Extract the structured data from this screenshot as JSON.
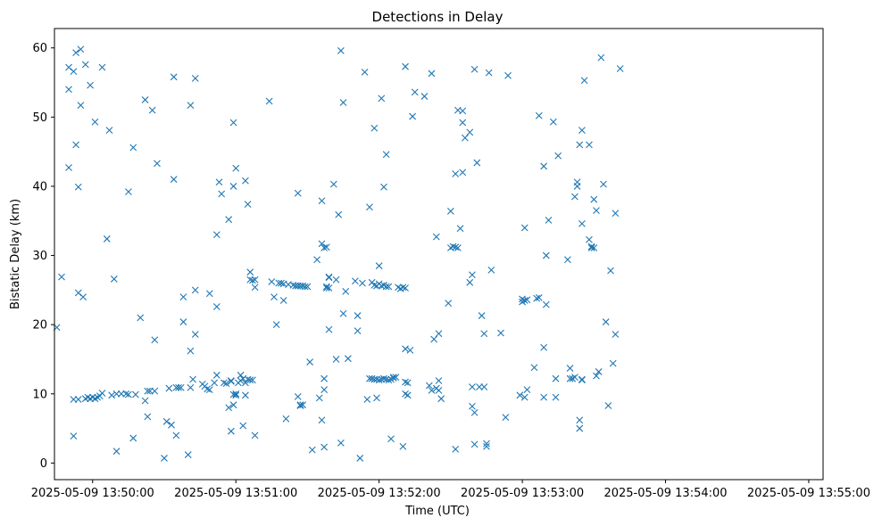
{
  "chart_data": {
    "type": "scatter",
    "title": "Detections in Delay",
    "xlabel": "Time (UTC)",
    "ylabel": "Bistatic Delay (km)",
    "marker": "x",
    "color": "#1f77b4",
    "grid": false,
    "legend": "none",
    "x_unit": "HH:MM:SS (UTC, 2025-05-09)",
    "xlim": [
      "13:49:44",
      "13:55:06"
    ],
    "ylim": [
      -2.4,
      62.8
    ],
    "x_ticks": [
      "2025-05-09 13:50:00",
      "2025-05-09 13:51:00",
      "2025-05-09 13:52:00",
      "2025-05-09 13:53:00",
      "2025-05-09 13:54:00",
      "2025-05-09 13:55:00"
    ],
    "y_ticks": [
      "0",
      "10",
      "20",
      "30",
      "40",
      "50",
      "60"
    ],
    "points": [
      [
        "13:49:45",
        19.6
      ],
      [
        "13:49:47",
        26.9
      ],
      [
        "13:49:50",
        57.2
      ],
      [
        "13:49:50",
        54.0
      ],
      [
        "13:49:50",
        42.7
      ],
      [
        "13:49:52",
        56.6
      ],
      [
        "13:49:52",
        9.2
      ],
      [
        "13:49:52",
        3.9
      ],
      [
        "13:49:53",
        46.0
      ],
      [
        "13:49:53",
        59.3
      ],
      [
        "13:49:54",
        24.6
      ],
      [
        "13:49:54",
        39.9
      ],
      [
        "13:49:54",
        9.2
      ],
      [
        "13:49:55",
        51.7
      ],
      [
        "13:49:55",
        59.8
      ],
      [
        "13:49:56",
        24.0
      ],
      [
        "13:49:57",
        9.3
      ],
      [
        "13:49:57",
        57.6
      ],
      [
        "13:49:58",
        9.5
      ],
      [
        "13:49:59",
        54.6
      ],
      [
        "13:49:59",
        9.3
      ],
      [
        "13:50:00",
        9.5
      ],
      [
        "13:50:01",
        9.3
      ],
      [
        "13:50:01",
        49.3
      ],
      [
        "13:50:02",
        9.5
      ],
      [
        "13:50:03",
        9.7
      ],
      [
        "13:50:04",
        10.1
      ],
      [
        "13:50:04",
        57.2
      ],
      [
        "13:50:06",
        32.4
      ],
      [
        "13:50:07",
        48.1
      ],
      [
        "13:50:08",
        9.8
      ],
      [
        "13:50:09",
        26.6
      ],
      [
        "13:50:10",
        10.0
      ],
      [
        "13:50:10",
        1.7
      ],
      [
        "13:50:12",
        10.0
      ],
      [
        "13:50:14",
        10.0
      ],
      [
        "13:50:15",
        9.9
      ],
      [
        "13:50:15",
        39.2
      ],
      [
        "13:50:17",
        3.6
      ],
      [
        "13:50:17",
        45.6
      ],
      [
        "13:50:18",
        9.9
      ],
      [
        "13:50:20",
        21.0
      ],
      [
        "13:50:22",
        52.5
      ],
      [
        "13:50:22",
        9.0
      ],
      [
        "13:50:23",
        10.4
      ],
      [
        "13:50:23",
        6.7
      ],
      [
        "13:50:24",
        10.4
      ],
      [
        "13:50:25",
        51.0
      ],
      [
        "13:50:26",
        17.8
      ],
      [
        "13:50:26",
        10.4
      ],
      [
        "13:50:27",
        43.3
      ],
      [
        "13:50:30",
        0.7
      ],
      [
        "13:50:31",
        6.0
      ],
      [
        "13:50:32",
        10.8
      ],
      [
        "13:50:33",
        5.5
      ],
      [
        "13:50:34",
        41.0
      ],
      [
        "13:50:34",
        55.8
      ],
      [
        "13:50:35",
        4.0
      ],
      [
        "13:50:35",
        10.9
      ],
      [
        "13:50:36",
        10.9
      ],
      [
        "13:50:37",
        10.9
      ],
      [
        "13:50:38",
        20.4
      ],
      [
        "13:50:38",
        24.0
      ],
      [
        "13:50:40",
        1.2
      ],
      [
        "13:50:41",
        10.9
      ],
      [
        "13:50:41",
        16.2
      ],
      [
        "13:50:41",
        51.7
      ],
      [
        "13:50:42",
        12.1
      ],
      [
        "13:50:43",
        18.6
      ],
      [
        "13:50:43",
        25.0
      ],
      [
        "13:50:43",
        55.6
      ],
      [
        "13:50:46",
        11.4
      ],
      [
        "13:50:47",
        11.1
      ],
      [
        "13:50:48",
        10.7
      ],
      [
        "13:50:49",
        10.6
      ],
      [
        "13:50:49",
        24.5
      ],
      [
        "13:50:51",
        11.6
      ],
      [
        "13:50:52",
        33.0
      ],
      [
        "13:50:52",
        12.7
      ],
      [
        "13:50:52",
        22.6
      ],
      [
        "13:50:53",
        40.6
      ],
      [
        "13:50:54",
        38.9
      ],
      [
        "13:50:55",
        11.6
      ],
      [
        "13:50:56",
        11.5
      ],
      [
        "13:50:57",
        8.0
      ],
      [
        "13:50:57",
        35.2
      ],
      [
        "13:50:58",
        4.6
      ],
      [
        "13:50:58",
        11.8
      ],
      [
        "13:50:58",
        11.9
      ],
      [
        "13:50:59",
        40.0
      ],
      [
        "13:50:59",
        49.2
      ],
      [
        "13:50:59",
        8.4
      ],
      [
        "13:50:59",
        9.9
      ],
      [
        "13:51:00",
        10.0
      ],
      [
        "13:51:00",
        9.8
      ],
      [
        "13:51:00",
        42.6
      ],
      [
        "13:51:01",
        11.6
      ],
      [
        "13:51:02",
        11.9
      ],
      [
        "13:51:02",
        12.7
      ],
      [
        "13:51:03",
        5.4
      ],
      [
        "13:51:03",
        12.2
      ],
      [
        "13:51:04",
        11.6
      ],
      [
        "13:51:04",
        9.8
      ],
      [
        "13:51:04",
        40.8
      ],
      [
        "13:51:05",
        12.1
      ],
      [
        "13:51:05",
        37.4
      ],
      [
        "13:51:06",
        12.0
      ],
      [
        "13:51:06",
        27.6
      ],
      [
        "13:51:06",
        26.5
      ],
      [
        "13:51:07",
        12.0
      ],
      [
        "13:51:07",
        26.4
      ],
      [
        "13:51:08",
        26.5
      ],
      [
        "13:51:08",
        25.4
      ],
      [
        "13:51:08",
        4.0
      ],
      [
        "13:51:14",
        52.3
      ],
      [
        "13:51:15",
        26.2
      ],
      [
        "13:51:16",
        24.0
      ],
      [
        "13:51:17",
        20.0
      ],
      [
        "13:51:18",
        26.0
      ],
      [
        "13:51:19",
        26.0
      ],
      [
        "13:51:20",
        23.5
      ],
      [
        "13:51:20",
        25.9
      ],
      [
        "13:51:21",
        6.4
      ],
      [
        "13:51:22",
        25.8
      ],
      [
        "13:51:24",
        25.7
      ],
      [
        "13:51:25",
        25.6
      ],
      [
        "13:51:26",
        25.6
      ],
      [
        "13:51:26",
        39.0
      ],
      [
        "13:51:26",
        9.6
      ],
      [
        "13:51:27",
        8.3
      ],
      [
        "13:51:27",
        8.4
      ],
      [
        "13:51:27",
        25.6
      ],
      [
        "13:51:28",
        25.6
      ],
      [
        "13:51:28",
        8.4
      ],
      [
        "13:51:29",
        25.5
      ],
      [
        "13:51:30",
        25.5
      ],
      [
        "13:51:31",
        14.6
      ],
      [
        "13:51:32",
        1.9
      ],
      [
        "13:51:34",
        29.4
      ],
      [
        "13:51:35",
        9.4
      ],
      [
        "13:51:36",
        31.7
      ],
      [
        "13:51:36",
        37.9
      ],
      [
        "13:51:36",
        6.2
      ],
      [
        "13:51:37",
        31.1
      ],
      [
        "13:51:37",
        2.3
      ],
      [
        "13:51:37",
        10.6
      ],
      [
        "13:51:37",
        12.2
      ],
      [
        "13:51:38",
        31.2
      ],
      [
        "13:51:38",
        25.3
      ],
      [
        "13:51:38",
        25.5
      ],
      [
        "13:51:39",
        26.9
      ],
      [
        "13:51:39",
        26.8
      ],
      [
        "13:51:39",
        19.3
      ],
      [
        "13:51:39",
        25.3
      ],
      [
        "13:51:41",
        40.3
      ],
      [
        "13:51:42",
        26.5
      ],
      [
        "13:51:42",
        15.0
      ],
      [
        "13:51:43",
        35.9
      ],
      [
        "13:51:44",
        2.9
      ],
      [
        "13:51:44",
        59.6
      ],
      [
        "13:51:45",
        52.1
      ],
      [
        "13:51:45",
        21.6
      ],
      [
        "13:51:46",
        24.8
      ],
      [
        "13:51:47",
        15.1
      ],
      [
        "13:51:50",
        26.3
      ],
      [
        "13:51:51",
        19.1
      ],
      [
        "13:51:51",
        21.3
      ],
      [
        "13:51:52",
        0.7
      ],
      [
        "13:51:53",
        26.0
      ],
      [
        "13:51:54",
        56.5
      ],
      [
        "13:51:55",
        9.2
      ],
      [
        "13:51:56",
        12.2
      ],
      [
        "13:51:56",
        37.0
      ],
      [
        "13:51:57",
        12.2
      ],
      [
        "13:51:57",
        26.1
      ],
      [
        "13:51:58",
        12.1
      ],
      [
        "13:51:58",
        25.7
      ],
      [
        "13:51:58",
        48.4
      ],
      [
        "13:51:59",
        9.4
      ],
      [
        "13:51:59",
        12.1
      ],
      [
        "13:51:59",
        25.6
      ],
      [
        "13:52:00",
        12.0
      ],
      [
        "13:52:00",
        28.5
      ],
      [
        "13:52:00",
        25.9
      ],
      [
        "13:52:01",
        12.1
      ],
      [
        "13:52:01",
        25.6
      ],
      [
        "13:52:01",
        52.7
      ],
      [
        "13:52:02",
        39.9
      ],
      [
        "13:52:02",
        12.2
      ],
      [
        "13:52:02",
        25.7
      ],
      [
        "13:52:03",
        12.1
      ],
      [
        "13:52:03",
        44.6
      ],
      [
        "13:52:03",
        25.5
      ],
      [
        "13:52:04",
        12.0
      ],
      [
        "13:52:04",
        25.5
      ],
      [
        "13:52:05",
        12.1
      ],
      [
        "13:52:05",
        3.5
      ],
      [
        "13:52:06",
        12.4
      ],
      [
        "13:52:06",
        12.3
      ],
      [
        "13:52:07",
        12.4
      ],
      [
        "13:52:08",
        25.4
      ],
      [
        "13:52:09",
        25.2
      ],
      [
        "13:52:10",
        2.4
      ],
      [
        "13:52:10",
        25.4
      ],
      [
        "13:52:11",
        25.3
      ],
      [
        "13:52:11",
        11.7
      ],
      [
        "13:52:11",
        16.5
      ],
      [
        "13:52:11",
        10.0
      ],
      [
        "13:52:11",
        57.3
      ],
      [
        "13:52:12",
        11.6
      ],
      [
        "13:52:12",
        9.8
      ],
      [
        "13:52:13",
        16.3
      ],
      [
        "13:52:14",
        50.1
      ],
      [
        "13:52:15",
        53.6
      ],
      [
        "13:52:19",
        53.0
      ],
      [
        "13:52:21",
        11.2
      ],
      [
        "13:52:22",
        56.3
      ],
      [
        "13:52:22",
        10.5
      ],
      [
        "13:52:23",
        17.9
      ],
      [
        "13:52:24",
        32.7
      ],
      [
        "13:52:24",
        10.8
      ],
      [
        "13:52:25",
        11.9
      ],
      [
        "13:52:25",
        18.7
      ],
      [
        "13:52:25",
        10.5
      ],
      [
        "13:52:26",
        9.3
      ],
      [
        "13:52:29",
        23.1
      ],
      [
        "13:52:30",
        36.4
      ],
      [
        "13:52:30",
        31.1
      ],
      [
        "13:52:31",
        31.3
      ],
      [
        "13:52:32",
        41.8
      ],
      [
        "13:52:32",
        31.2
      ],
      [
        "13:52:32",
        2.0
      ],
      [
        "13:52:33",
        51.0
      ],
      [
        "13:52:33",
        31.1
      ],
      [
        "13:52:34",
        33.9
      ],
      [
        "13:52:35",
        50.9
      ],
      [
        "13:52:35",
        49.2
      ],
      [
        "13:52:35",
        42.0
      ],
      [
        "13:52:36",
        47.0
      ],
      [
        "13:52:38",
        47.8
      ],
      [
        "13:52:38",
        26.1
      ],
      [
        "13:52:39",
        27.2
      ],
      [
        "13:52:39",
        11.0
      ],
      [
        "13:52:39",
        8.2
      ],
      [
        "13:52:40",
        7.3
      ],
      [
        "13:52:40",
        2.7
      ],
      [
        "13:52:40",
        56.9
      ],
      [
        "13:52:41",
        43.4
      ],
      [
        "13:52:42",
        11.0
      ],
      [
        "13:52:43",
        21.3
      ],
      [
        "13:52:44",
        11.0
      ],
      [
        "13:52:44",
        18.7
      ],
      [
        "13:52:45",
        2.8
      ],
      [
        "13:52:45",
        2.4
      ],
      [
        "13:52:46",
        56.4
      ],
      [
        "13:52:47",
        27.9
      ],
      [
        "13:52:51",
        18.8
      ],
      [
        "13:52:53",
        6.6
      ],
      [
        "13:52:54",
        56.0
      ],
      [
        "13:52:59",
        9.8
      ],
      [
        "13:53:00",
        23.3
      ],
      [
        "13:53:00",
        23.7
      ],
      [
        "13:53:01",
        34.0
      ],
      [
        "13:53:01",
        9.5
      ],
      [
        "13:53:01",
        23.5
      ],
      [
        "13:53:02",
        23.6
      ],
      [
        "13:53:02",
        10.6
      ],
      [
        "13:53:05",
        13.8
      ],
      [
        "13:53:06",
        23.8
      ],
      [
        "13:53:07",
        23.9
      ],
      [
        "13:53:07",
        50.2
      ],
      [
        "13:53:09",
        42.9
      ],
      [
        "13:53:09",
        16.7
      ],
      [
        "13:53:09",
        9.5
      ],
      [
        "13:53:10",
        22.9
      ],
      [
        "13:53:10",
        30.0
      ],
      [
        "13:53:11",
        35.1
      ],
      [
        "13:53:13",
        49.3
      ],
      [
        "13:53:14",
        9.5
      ],
      [
        "13:53:14",
        12.2
      ],
      [
        "13:53:15",
        44.4
      ],
      [
        "13:53:19",
        29.4
      ],
      [
        "13:53:20",
        12.2
      ],
      [
        "13:53:20",
        13.7
      ],
      [
        "13:53:21",
        12.2
      ],
      [
        "13:53:22",
        38.5
      ],
      [
        "13:53:22",
        12.4
      ],
      [
        "13:53:23",
        40.0
      ],
      [
        "13:53:23",
        40.6
      ],
      [
        "13:53:24",
        6.2
      ],
      [
        "13:53:24",
        5.0
      ],
      [
        "13:53:24",
        46.0
      ],
      [
        "13:53:25",
        12.1
      ],
      [
        "13:53:25",
        12.0
      ],
      [
        "13:53:25",
        48.1
      ],
      [
        "13:53:25",
        34.6
      ],
      [
        "13:53:26",
        55.3
      ],
      [
        "13:53:28",
        32.3
      ],
      [
        "13:53:28",
        46.0
      ],
      [
        "13:53:29",
        31.3
      ],
      [
        "13:53:29",
        31.1
      ],
      [
        "13:53:30",
        31.1
      ],
      [
        "13:53:30",
        38.1
      ],
      [
        "13:53:31",
        36.5
      ],
      [
        "13:53:31",
        12.6
      ],
      [
        "13:53:32",
        13.2
      ],
      [
        "13:53:33",
        58.6
      ],
      [
        "13:53:34",
        40.3
      ],
      [
        "13:53:35",
        20.4
      ],
      [
        "13:53:36",
        8.3
      ],
      [
        "13:53:37",
        27.8
      ],
      [
        "13:53:38",
        14.4
      ],
      [
        "13:53:39",
        36.1
      ],
      [
        "13:53:39",
        18.6
      ],
      [
        "13:53:41",
        57.0
      ]
    ]
  }
}
